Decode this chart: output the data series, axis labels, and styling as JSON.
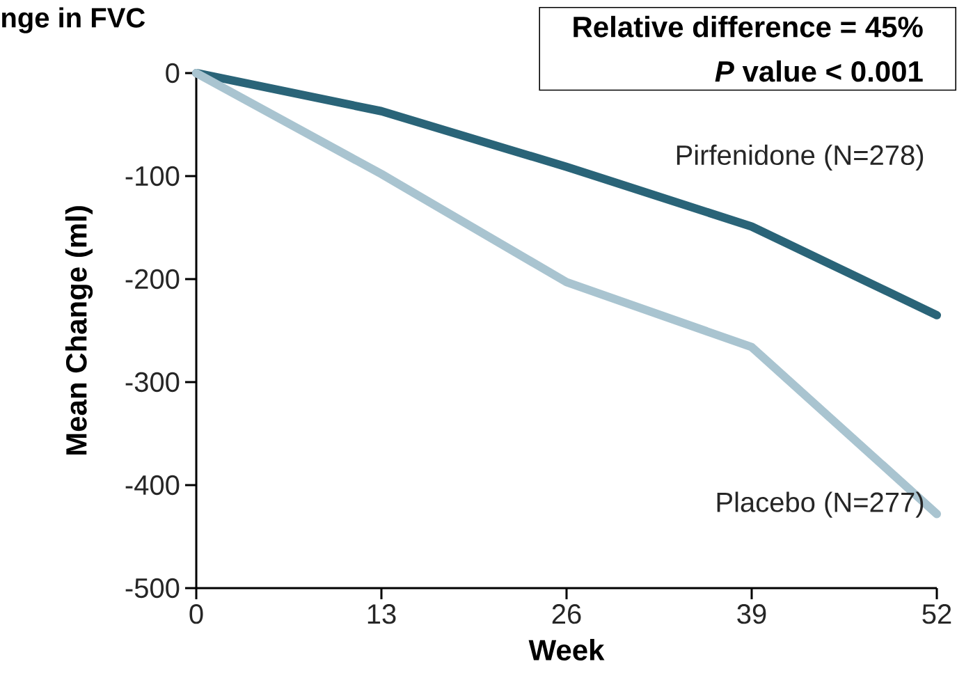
{
  "chart_data": {
    "type": "line",
    "title": "nge in FVC",
    "xlabel": "Week",
    "ylabel": "Mean Change (ml)",
    "x": [
      0,
      13,
      26,
      39,
      52
    ],
    "xlim": [
      0,
      52
    ],
    "ylim": [
      -500,
      0
    ],
    "xticks": [
      0,
      13,
      26,
      39,
      52
    ],
    "yticks": [
      -500,
      -400,
      -300,
      -200,
      -100,
      0
    ],
    "series": [
      {
        "name": "Pirfenidone (N=278)",
        "color": "#2a6478",
        "values": [
          0,
          -37,
          -91,
          -149,
          -235
        ]
      },
      {
        "name": "Placebo (N=277)",
        "color": "#a9c4d0",
        "values": [
          0,
          -98,
          -203,
          -266,
          -428
        ]
      }
    ],
    "annotations": [
      "Relative difference = 45%",
      "*P* value < 0.001"
    ]
  }
}
